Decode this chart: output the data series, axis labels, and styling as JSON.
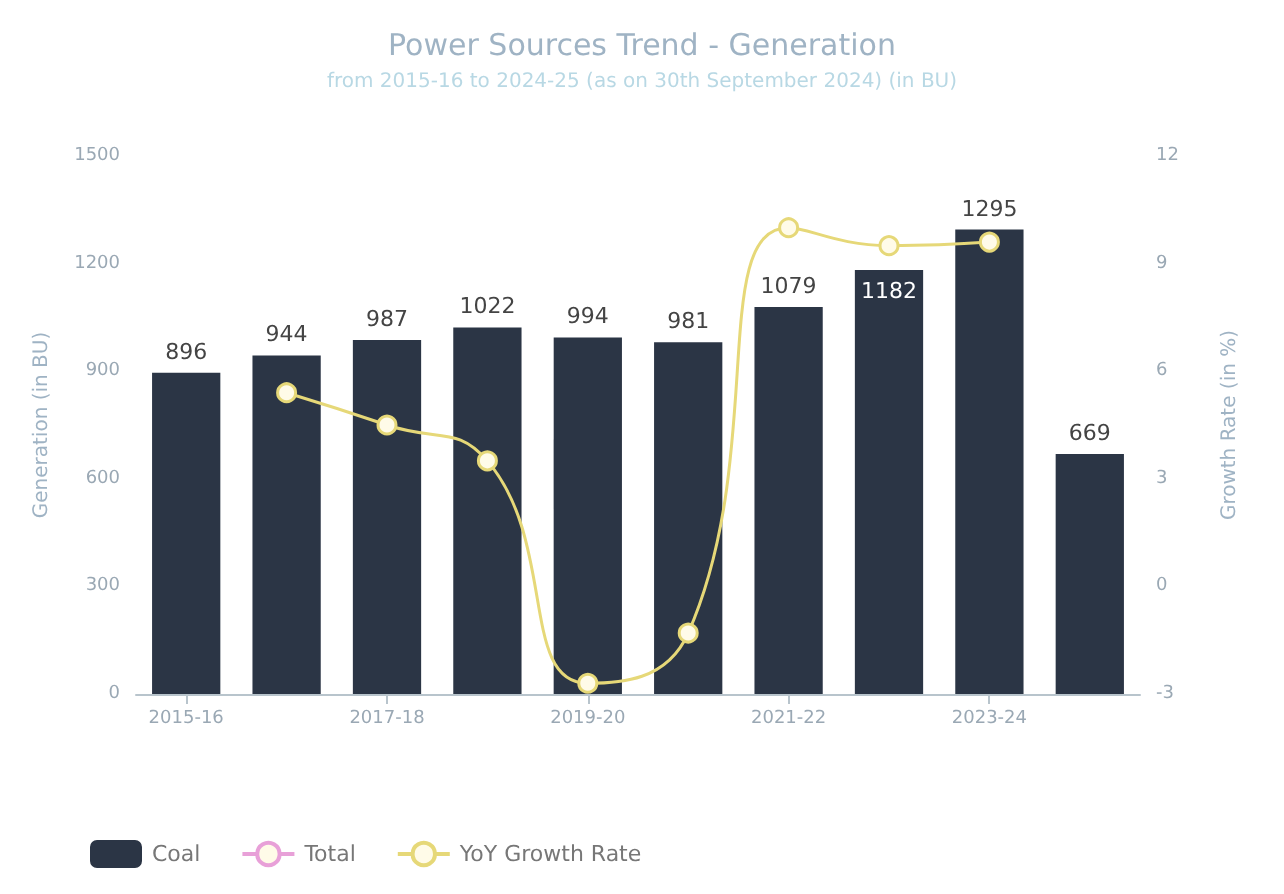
{
  "chart_data": {
    "type": "bar",
    "title": "Power Sources Trend - Generation",
    "subtitle": "from 2015-16 to 2024-25 (as on 30th September 2024) (in BU)",
    "categories": [
      "2015-16",
      null,
      "2017-18",
      null,
      "2019-20",
      null,
      "2021-22",
      null,
      "2023-24",
      null
    ],
    "series": [
      {
        "name": "Coal",
        "type": "bar",
        "color": "#2b3545",
        "values": [
          896,
          944,
          987,
          1022,
          994,
          981,
          1079,
          1182,
          1295,
          669
        ],
        "data_labels": true
      },
      {
        "name": "Total",
        "type": "line",
        "color": "#e8a0d8",
        "values": [
          null,
          null,
          null,
          null,
          null,
          null,
          null,
          null,
          null,
          null
        ]
      },
      {
        "name": "YoY Growth Rate",
        "type": "line",
        "axis": "y2",
        "color": "#e6d878",
        "values": [
          null,
          5.4,
          4.5,
          3.5,
          -2.7,
          -1.3,
          10.0,
          9.5,
          9.6,
          null
        ]
      }
    ],
    "xlabel": null,
    "ylabel": "Generation (in BU)",
    "y2label": "Growth Rate (in %)",
    "ylim": [
      0,
      1500
    ],
    "yticks": [
      0,
      300,
      600,
      900,
      1200,
      1500
    ],
    "y2lim": [
      -3,
      12
    ],
    "y2ticks": [
      -3,
      0,
      3,
      6,
      9,
      12
    ],
    "marker": "circle",
    "legend": "bottom left",
    "grid": false
  }
}
